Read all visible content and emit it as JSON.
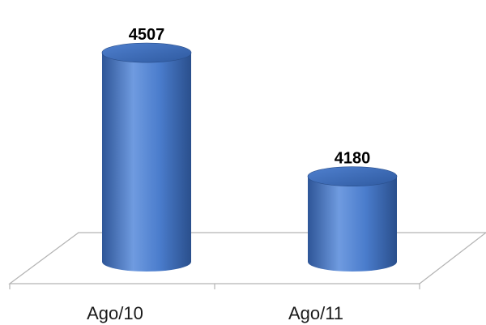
{
  "chart_data": {
    "type": "bar",
    "style": "3d-cylinder",
    "categories": [
      "Ago/10",
      "Ago/11"
    ],
    "values": [
      4507,
      4180
    ],
    "data_labels": [
      "4507",
      "4180"
    ],
    "title": "",
    "xlabel": "",
    "ylabel": "",
    "ylim": [
      4100,
      4550
    ],
    "grid": false,
    "legend": "none",
    "colors": {
      "bar_dark": "#2e5597",
      "bar_mid": "#4a7ccc",
      "bar_light": "#6f9be0",
      "bar_top": "#3d6cb8",
      "floor_line": "#b3b3b3"
    }
  }
}
